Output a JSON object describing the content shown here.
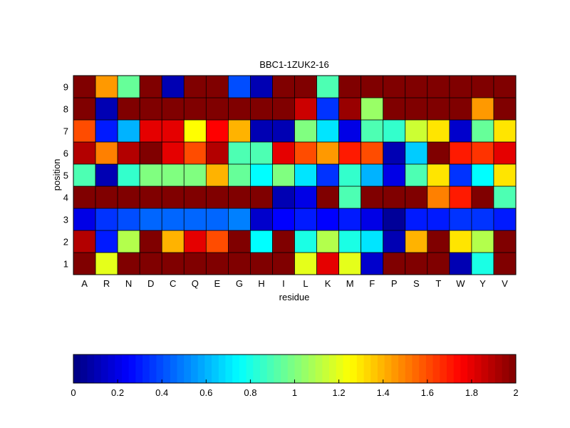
{
  "chart_data": [
    {
      "type": "heatmap",
      "title": "BBC1-1ZUK2-16",
      "xlabel": "residue",
      "ylabel": "position",
      "x_categories": [
        "A",
        "R",
        "N",
        "D",
        "C",
        "Q",
        "E",
        "G",
        "H",
        "I",
        "L",
        "K",
        "M",
        "F",
        "P",
        "S",
        "T",
        "W",
        "Y",
        "V"
      ],
      "y_categories": [
        "1",
        "2",
        "3",
        "4",
        "5",
        "6",
        "7",
        "8",
        "9"
      ],
      "value_range": [
        0,
        2
      ],
      "colormap": "jet",
      "values": [
        [
          2.0,
          1.2,
          2.0,
          2.0,
          2.0,
          2.0,
          2.0,
          2.0,
          2.0,
          2.0,
          1.2,
          1.8,
          1.2,
          0.15,
          2.0,
          2.0,
          2.0,
          0.1,
          0.8,
          2.0
        ],
        [
          1.9,
          0.3,
          1.1,
          2.0,
          1.4,
          1.8,
          1.6,
          2.0,
          0.75,
          2.0,
          0.8,
          1.1,
          0.8,
          0.7,
          0.1,
          1.4,
          2.0,
          1.3,
          1.1,
          2.0
        ],
        [
          0.2,
          0.35,
          0.4,
          0.45,
          0.45,
          0.45,
          0.45,
          0.5,
          0.15,
          0.25,
          0.3,
          0.25,
          0.3,
          0.2,
          0.05,
          0.3,
          0.3,
          0.35,
          0.35,
          0.3
        ],
        [
          2.0,
          2.0,
          2.0,
          2.0,
          2.0,
          2.0,
          2.0,
          2.0,
          2.0,
          0.1,
          0.2,
          2.0,
          0.9,
          2.0,
          2.0,
          2.0,
          1.5,
          1.7,
          2.0,
          0.9
        ],
        [
          0.9,
          0.1,
          0.85,
          1.0,
          1.0,
          1.0,
          1.4,
          0.95,
          0.75,
          1.0,
          0.7,
          0.35,
          0.85,
          0.6,
          0.2,
          0.9,
          1.3,
          0.35,
          0.75,
          1.3
        ],
        [
          1.9,
          1.5,
          1.9,
          2.0,
          1.8,
          1.6,
          1.9,
          0.9,
          0.9,
          1.8,
          1.6,
          1.45,
          1.7,
          1.6,
          0.1,
          0.65,
          2.0,
          1.7,
          1.65,
          1.8
        ],
        [
          1.6,
          0.3,
          0.6,
          1.8,
          1.8,
          1.25,
          1.75,
          1.4,
          0.1,
          0.1,
          1.0,
          0.7,
          0.2,
          0.9,
          0.85,
          1.15,
          1.3,
          0.15,
          0.95,
          1.3
        ],
        [
          2.0,
          0.1,
          2.0,
          2.0,
          2.0,
          2.0,
          2.0,
          2.0,
          2.0,
          2.0,
          1.85,
          0.35,
          1.95,
          1.05,
          2.0,
          2.0,
          2.0,
          2.0,
          1.45,
          2.0
        ],
        [
          2.0,
          1.45,
          0.95,
          2.0,
          0.1,
          2.0,
          2.0,
          0.4,
          0.1,
          2.0,
          2.0,
          0.9,
          2.0,
          2.0,
          2.0,
          2.0,
          2.0,
          2.0,
          2.0,
          2.0
        ]
      ],
      "grid": false
    },
    {
      "type": "heatmap",
      "title": "",
      "orientation": "horizontal",
      "colormap": "jet",
      "range": [
        0,
        2
      ],
      "tick_values": [
        0,
        0.2,
        0.4,
        0.6,
        0.8,
        1,
        1.2,
        1.4,
        1.6,
        1.8,
        2
      ],
      "tick_labels": [
        "0",
        "0.2",
        "0.4",
        "0.6",
        "0.8",
        "1",
        "1.2",
        "1.4",
        "1.6",
        "1.8",
        "2"
      ],
      "levels": 64
    }
  ]
}
